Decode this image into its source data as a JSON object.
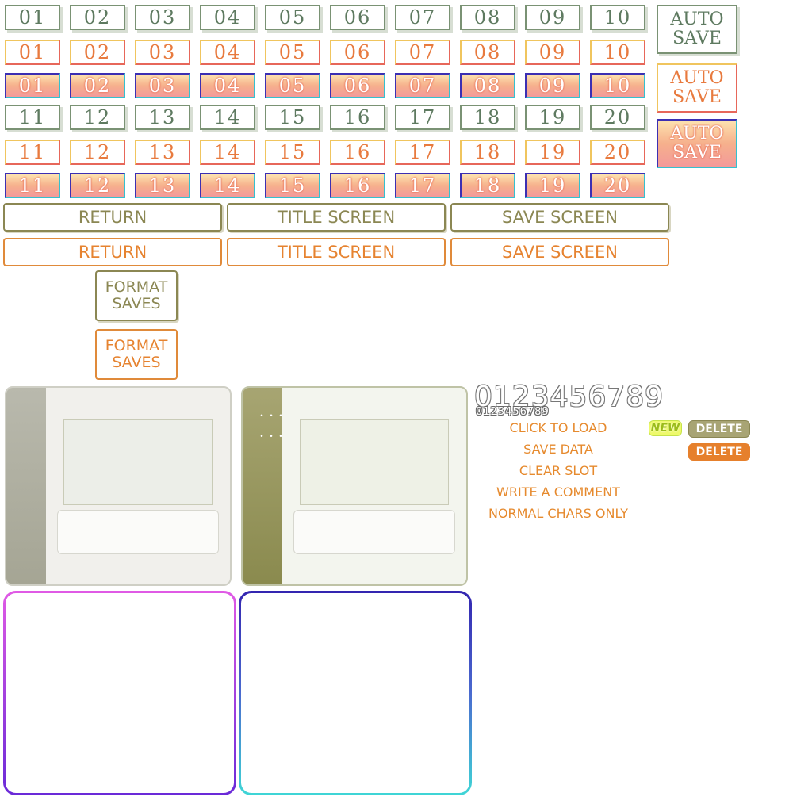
{
  "slots_row1": [
    "01",
    "02",
    "03",
    "04",
    "05",
    "06",
    "07",
    "08",
    "09",
    "10"
  ],
  "slots_row2": [
    "11",
    "12",
    "13",
    "14",
    "15",
    "16",
    "17",
    "18",
    "19",
    "20"
  ],
  "auto_save": [
    "AUTO",
    "SAVE"
  ],
  "nav": {
    "return": "RETURN",
    "title_screen": "TITLE SCREEN",
    "save_screen": "SAVE SCREEN"
  },
  "format_saves": [
    "FORMAT",
    "SAVES"
  ],
  "panel_dots": "・・・",
  "digits_large": "0123456789",
  "digits_small": "0123456789",
  "labels": [
    "CLICK TO LOAD",
    "SAVE DATA",
    "CLEAR SLOT",
    "WRITE A COMMENT",
    "NORMAL CHARS ONLY"
  ],
  "badges": {
    "new": "NEW",
    "delete": "DELETE"
  },
  "colors": {
    "green": "#7a9274",
    "orange": "#e87a3e",
    "olive": "#8b8753",
    "magenta": "#e05ae5",
    "violet": "#6a2ad8",
    "indigo": "#3325b0",
    "cyan": "#3fd6d6"
  }
}
